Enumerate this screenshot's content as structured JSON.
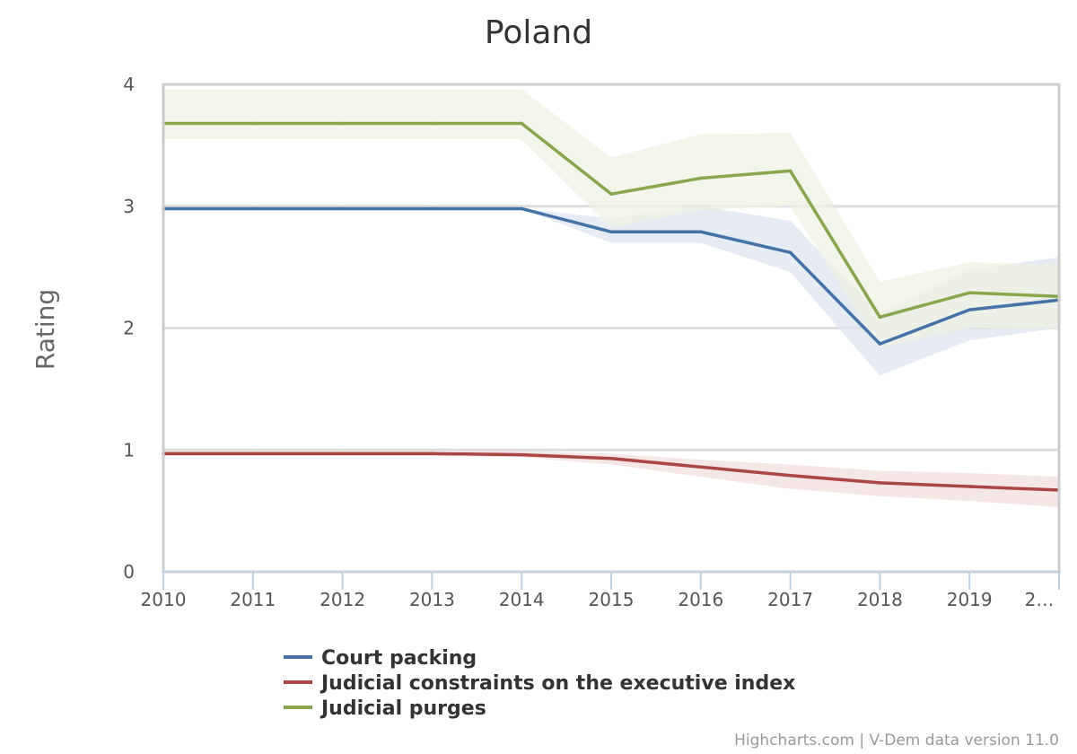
{
  "chart_data": {
    "type": "line",
    "title": "Poland",
    "xlabel": "",
    "ylabel": "Rating",
    "x": [
      2010,
      2011,
      2012,
      2013,
      2014,
      2015,
      2016,
      2017,
      2018,
      2019,
      2020
    ],
    "x_tick_labels": [
      "2010",
      "2011",
      "2012",
      "2013",
      "2014",
      "2015",
      "2016",
      "2017",
      "2018",
      "2019",
      "2…"
    ],
    "xlim": [
      2010,
      2020
    ],
    "ylim": [
      0,
      4
    ],
    "y_ticks": [
      0,
      1,
      2,
      3,
      4
    ],
    "grid": true,
    "legend_position": "bottom",
    "series": [
      {
        "name": "Court packing",
        "color": "#4572a7",
        "band_color": "#dde4f0",
        "values": [
          2.98,
          2.98,
          2.98,
          2.98,
          2.98,
          2.79,
          2.79,
          2.62,
          1.87,
          2.15,
          2.23
        ],
        "lower": [
          2.98,
          2.98,
          2.98,
          2.98,
          2.98,
          2.7,
          2.7,
          2.46,
          1.61,
          1.9,
          2.0
        ],
        "upper": [
          2.98,
          2.98,
          2.98,
          2.98,
          2.98,
          2.9,
          3.0,
          2.88,
          2.12,
          2.48,
          2.58
        ]
      },
      {
        "name": "Judicial constraints on the executive index",
        "color": "#aa4643",
        "band_color": "#f3dfdf",
        "values": [
          0.97,
          0.97,
          0.97,
          0.97,
          0.96,
          0.93,
          0.86,
          0.79,
          0.73,
          0.7,
          0.67
        ],
        "lower": [
          0.95,
          0.95,
          0.95,
          0.95,
          0.94,
          0.88,
          0.78,
          0.68,
          0.62,
          0.58,
          0.53
        ],
        "upper": [
          0.99,
          0.99,
          0.99,
          0.99,
          0.99,
          0.97,
          0.92,
          0.88,
          0.83,
          0.81,
          0.78
        ]
      },
      {
        "name": "Judicial purges",
        "color": "#89a54e",
        "band_color": "#edf2e3",
        "values": [
          3.68,
          3.68,
          3.68,
          3.68,
          3.68,
          3.1,
          3.23,
          3.29,
          2.09,
          2.29,
          2.26
        ],
        "lower": [
          3.55,
          3.55,
          3.55,
          3.55,
          3.55,
          2.82,
          2.97,
          3.0,
          1.84,
          2.0,
          1.99
        ],
        "upper": [
          3.96,
          3.96,
          3.96,
          3.96,
          3.96,
          3.4,
          3.59,
          3.6,
          2.38,
          2.54,
          2.52
        ]
      }
    ]
  },
  "credits": "Highcharts.com | V-Dem data version 11.0"
}
